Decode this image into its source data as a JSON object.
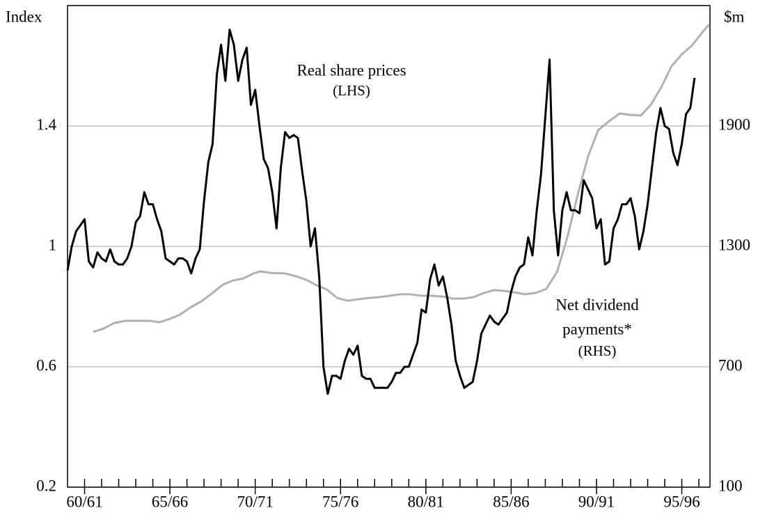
{
  "chart_data": {
    "type": "line",
    "ylabel": "Index",
    "y2label": "$m",
    "annotations": [
      "Real share prices",
      "(LHS)",
      "Net dividend",
      "payments*",
      "(RHS)"
    ],
    "xlim": [
      1959,
      1996.65
    ],
    "xticks": [
      {
        "value": 1960,
        "label": "60/61"
      },
      {
        "value": 1965,
        "label": "65/66"
      },
      {
        "value": 1970,
        "label": "70/71"
      },
      {
        "value": 1975,
        "label": "75/76"
      },
      {
        "value": 1980,
        "label": "80/81"
      },
      {
        "value": 1985,
        "label": "85/86"
      },
      {
        "value": 1990,
        "label": "90/91"
      },
      {
        "value": 1995,
        "label": "95/96"
      }
    ],
    "xminor_ticks": [
      1960,
      1961,
      1962,
      1963,
      1964,
      1965,
      1966,
      1967,
      1968,
      1969,
      1970,
      1971,
      1972,
      1973,
      1974,
      1975,
      1976,
      1977,
      1978,
      1979,
      1980,
      1981,
      1982,
      1983,
      1984,
      1985,
      1986,
      1987,
      1988,
      1989,
      1990,
      1991,
      1992,
      1993,
      1994,
      1995,
      1996
    ],
    "ylim": [
      0.2,
      1.8
    ],
    "yticks": [
      0.2,
      0.6,
      1.0,
      1.4
    ],
    "y2lim": [
      100,
      2500
    ],
    "y2ticks": [
      100,
      700,
      1300,
      1900
    ],
    "grid": true,
    "series": [
      {
        "name": "Real share prices",
        "color": "#000000",
        "axis": "y",
        "x": [
          1959,
          1959.25,
          1959.5,
          1959.75,
          1960,
          1960.25,
          1960.5,
          1960.75,
          1961,
          1961.25,
          1961.5,
          1961.75,
          1962,
          1962.25,
          1962.5,
          1962.75,
          1963,
          1963.25,
          1963.5,
          1963.75,
          1964,
          1964.25,
          1964.5,
          1964.75,
          1965,
          1965.25,
          1965.5,
          1965.75,
          1966,
          1966.25,
          1966.5,
          1966.75,
          1967,
          1967.25,
          1967.5,
          1967.75,
          1968,
          1968.25,
          1968.5,
          1968.75,
          1969,
          1969.25,
          1969.5,
          1969.75,
          1970,
          1970.25,
          1970.5,
          1970.75,
          1971,
          1971.25,
          1971.5,
          1971.75,
          1972,
          1972.25,
          1972.5,
          1972.75,
          1973,
          1973.25,
          1973.5,
          1973.75,
          1974,
          1974.25,
          1974.5,
          1974.75,
          1975,
          1975.25,
          1975.5,
          1975.75,
          1976,
          1976.25,
          1976.5,
          1976.75,
          1977,
          1977.25,
          1977.5,
          1977.75,
          1978,
          1978.25,
          1978.5,
          1978.75,
          1979,
          1979.25,
          1979.5,
          1979.75,
          1980,
          1980.25,
          1980.5,
          1980.75,
          1981,
          1981.25,
          1981.5,
          1981.75,
          1982,
          1982.25,
          1982.5,
          1982.75,
          1983,
          1983.25,
          1983.5,
          1983.75,
          1984,
          1984.25,
          1984.5,
          1984.75,
          1985,
          1985.25,
          1985.5,
          1985.75,
          1986,
          1986.25,
          1986.5,
          1986.75,
          1987,
          1987.25,
          1987.5,
          1987.75,
          1988,
          1988.25,
          1988.5,
          1988.75,
          1989,
          1989.25,
          1989.5,
          1989.75,
          1990,
          1990.25,
          1990.5,
          1990.75,
          1991,
          1991.25,
          1991.5,
          1991.75,
          1992,
          1992.25,
          1992.5,
          1992.75,
          1993,
          1993.25,
          1993.5,
          1993.75,
          1994,
          1994.25,
          1994.5,
          1994.75,
          1995,
          1995.25,
          1995.5,
          1995.75
        ],
        "values": [
          0.92,
          1.0,
          1.05,
          1.07,
          1.09,
          0.95,
          0.93,
          0.98,
          0.96,
          0.95,
          0.99,
          0.95,
          0.94,
          0.94,
          0.96,
          1.0,
          1.08,
          1.1,
          1.18,
          1.14,
          1.14,
          1.09,
          1.05,
          0.96,
          0.95,
          0.94,
          0.96,
          0.96,
          0.95,
          0.91,
          0.96,
          0.99,
          1.15,
          1.28,
          1.34,
          1.57,
          1.67,
          1.55,
          1.72,
          1.67,
          1.55,
          1.62,
          1.66,
          1.47,
          1.52,
          1.4,
          1.29,
          1.26,
          1.18,
          1.06,
          1.26,
          1.38,
          1.36,
          1.37,
          1.36,
          1.25,
          1.15,
          1.0,
          1.06,
          0.9,
          0.6,
          0.51,
          0.57,
          0.57,
          0.56,
          0.62,
          0.66,
          0.64,
          0.67,
          0.57,
          0.56,
          0.56,
          0.53,
          0.53,
          0.53,
          0.53,
          0.55,
          0.58,
          0.58,
          0.6,
          0.6,
          0.64,
          0.68,
          0.79,
          0.78,
          0.89,
          0.94,
          0.87,
          0.9,
          0.83,
          0.74,
          0.62,
          0.57,
          0.53,
          0.54,
          0.55,
          0.62,
          0.71,
          0.74,
          0.77,
          0.75,
          0.74,
          0.76,
          0.78,
          0.85,
          0.9,
          0.93,
          0.94,
          1.03,
          0.97,
          1.12,
          1.24,
          1.43,
          1.62,
          1.12,
          0.97,
          1.12,
          1.18,
          1.12,
          1.12,
          1.11,
          1.22,
          1.19,
          1.16,
          1.06,
          1.09,
          0.94,
          0.95,
          1.06,
          1.09,
          1.14,
          1.14,
          1.16,
          1.1,
          0.99,
          1.05,
          1.14,
          1.26,
          1.38,
          1.46,
          1.4,
          1.39,
          1.31,
          1.27,
          1.34,
          1.44,
          1.46,
          1.56
        ]
      },
      {
        "name": "Net dividend payments*",
        "color": "#b0b0b0",
        "axis": "y2",
        "x": [
          1960.5,
          1961.1,
          1961.75,
          1962.4,
          1963.0,
          1963.8,
          1964.4,
          1965.0,
          1965.6,
          1966.2,
          1966.9,
          1967.5,
          1968.1,
          1968.7,
          1969.3,
          1969.9,
          1970.3,
          1970.9,
          1971.75,
          1972.4,
          1973.0,
          1973.6,
          1974.2,
          1974.8,
          1975.4,
          1976.0,
          1976.65,
          1977.3,
          1977.9,
          1978.5,
          1979.1,
          1979.7,
          1980.3,
          1981.0,
          1981.6,
          1982.2,
          1982.8,
          1983.4,
          1984.0,
          1984.6,
          1985.2,
          1985.8,
          1986.45,
          1987.06,
          1987.7,
          1988.3,
          1988.9,
          1989.5,
          1990.1,
          1990.7,
          1991.35,
          1992.0,
          1992.6,
          1993.2,
          1993.8,
          1994.4,
          1995.0,
          1995.6,
          1996.25,
          1996.6
        ],
        "values": [
          873,
          890,
          918,
          929,
          929,
          929,
          922,
          939,
          960,
          995,
          1029,
          1068,
          1109,
          1130,
          1140,
          1165,
          1175,
          1168,
          1165,
          1151,
          1133,
          1106,
          1085,
          1043,
          1029,
          1036,
          1043,
          1047,
          1054,
          1061,
          1061,
          1054,
          1054,
          1050,
          1040,
          1040,
          1047,
          1068,
          1082,
          1078,
          1071,
          1061,
          1068,
          1088,
          1175,
          1348,
          1557,
          1747,
          1879,
          1921,
          1962,
          1955,
          1952,
          2007,
          2094,
          2198,
          2257,
          2302,
          2371,
          2406
        ]
      }
    ]
  }
}
